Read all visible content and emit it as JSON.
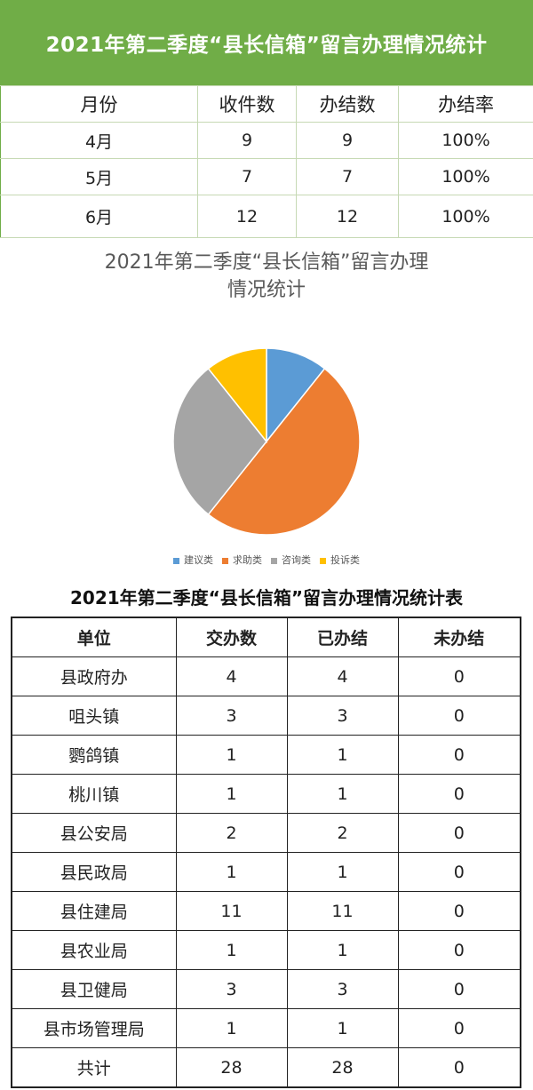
{
  "top_table": {
    "title": "2021年第二季度“县长信箱”留言办理情况统计",
    "headers": [
      "月份",
      "收件数",
      "办结数",
      "办结率"
    ],
    "rows": [
      [
        "4月",
        "9",
        "9",
        "100%"
      ],
      [
        "5月",
        "7",
        "7",
        "100%"
      ],
      [
        "6月",
        "12",
        "12",
        "100%"
      ]
    ]
  },
  "chart_data": {
    "type": "pie",
    "title_line1": "2021年第二季度“县长信箱”留言办理",
    "title_line2": "情况统计",
    "categories": [
      "建议类",
      "求助类",
      "咨询类",
      "投诉类"
    ],
    "values": [
      3,
      14,
      8,
      3
    ],
    "colors": [
      "#5b9bd5",
      "#ed7d31",
      "#a5a5a5",
      "#ffc000"
    ],
    "legend_position": "bottom"
  },
  "bottom_table": {
    "title": "2021年第二季度“县长信箱”留言办理情况统计表",
    "headers": [
      "单位",
      "交办数",
      "已办结",
      "未办结"
    ],
    "rows": [
      [
        "县政府办",
        "4",
        "4",
        "0"
      ],
      [
        "咀头镇",
        "3",
        "3",
        "0"
      ],
      [
        "鹦鸽镇",
        "1",
        "1",
        "0"
      ],
      [
        "桃川镇",
        "1",
        "1",
        "0"
      ],
      [
        "县公安局",
        "2",
        "2",
        "0"
      ],
      [
        "县民政局",
        "1",
        "1",
        "0"
      ],
      [
        "县住建局",
        "11",
        "11",
        "0"
      ],
      [
        "县农业局",
        "1",
        "1",
        "0"
      ],
      [
        "县卫健局",
        "3",
        "3",
        "0"
      ],
      [
        "县市场管理局",
        "1",
        "1",
        "0"
      ],
      [
        "共计",
        "28",
        "28",
        "0"
      ]
    ]
  }
}
